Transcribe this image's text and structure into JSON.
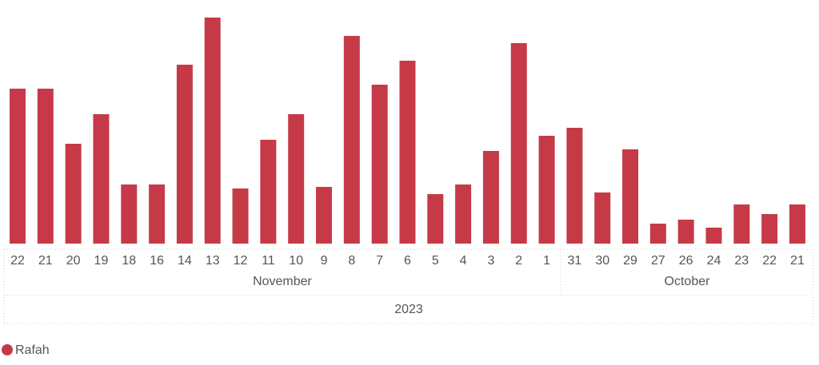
{
  "chart_data": {
    "type": "bar",
    "year": "2023",
    "months": [
      {
        "name": "November",
        "days": [
          "22",
          "21",
          "20",
          "19",
          "18",
          "16",
          "14",
          "13",
          "12",
          "11",
          "10",
          "9",
          "8",
          "7",
          "6",
          "5",
          "4",
          "3",
          "2",
          "1"
        ]
      },
      {
        "name": "October",
        "days": [
          "31",
          "30",
          "29",
          "27",
          "26",
          "24",
          "23",
          "22",
          "21"
        ]
      }
    ],
    "series": [
      {
        "name": "Rafah",
        "color": "#c63a47",
        "values": [
          194,
          194,
          125,
          162,
          74,
          74,
          224,
          283,
          69,
          130,
          162,
          71,
          260,
          199,
          229,
          62,
          74,
          116,
          251,
          135,
          145,
          64,
          118,
          25,
          30,
          20,
          49,
          37,
          49
        ]
      }
    ]
  }
}
